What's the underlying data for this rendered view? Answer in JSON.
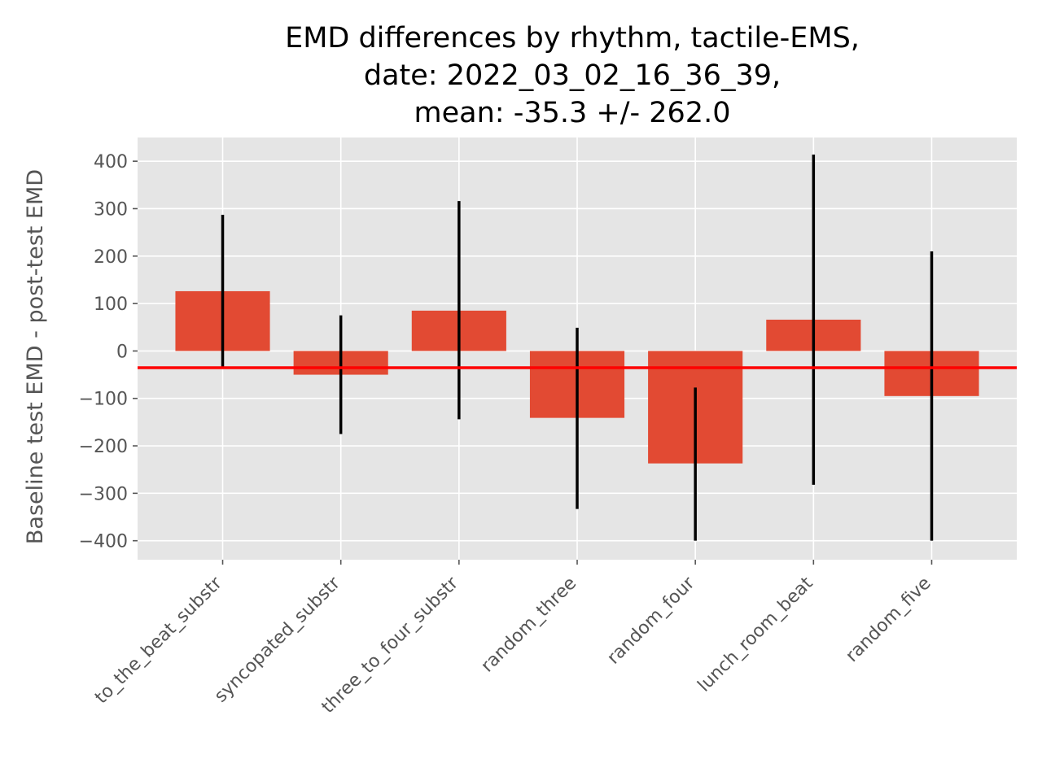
{
  "chart_data": {
    "type": "bar",
    "title_lines": [
      "EMD differences by rhythm, tactile-EMS,",
      "date: 2022_03_02_16_36_39,",
      "mean: -35.3 +/- 262.0"
    ],
    "xlabel": "",
    "ylabel": "Baseline test EMD - post-test EMD",
    "categories": [
      "to_the_beat_substr",
      "syncopated_substr",
      "three_to_four_substr",
      "random_three",
      "random_four",
      "lunch_room_beat",
      "random_five"
    ],
    "values": [
      126,
      -50,
      85,
      -141,
      -237,
      66,
      -95
    ],
    "error_low": [
      -34,
      -175,
      -144,
      -333,
      -400,
      -282,
      -400
    ],
    "error_high": [
      287,
      75,
      316,
      49,
      -77,
      414,
      210
    ],
    "mean_line": -35.3,
    "ylim": [
      -440,
      450
    ],
    "yticks": [
      -400,
      -300,
      -200,
      -100,
      0,
      100,
      200,
      300,
      400
    ],
    "ytick_labels": [
      "−400",
      "−300",
      "−200",
      "−100",
      "0",
      "100",
      "200",
      "300",
      "400"
    ],
    "grid": true,
    "colors": {
      "bar": "#E24A33",
      "error_bar": "#000000",
      "mean_line": "#FF0000",
      "plot_background": "#E5E5E5",
      "grid": "#FFFFFF"
    }
  }
}
